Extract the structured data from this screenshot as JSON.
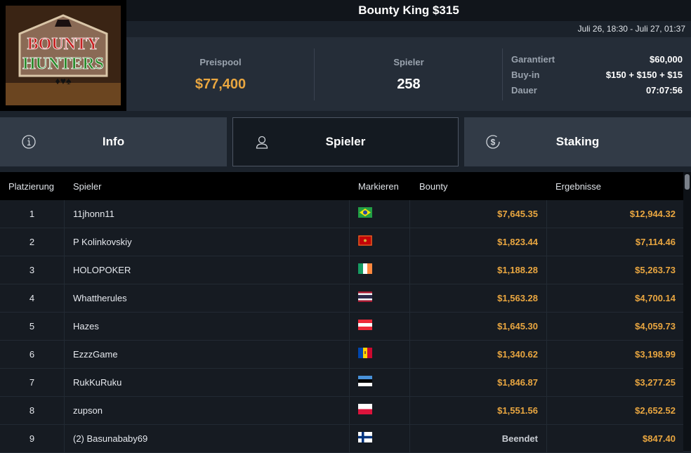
{
  "logo": {
    "text": "BOUNTY HUNTERS"
  },
  "header": {
    "title": "Bounty King $315",
    "dates": "Juli 26, 18:30 - Juli 27, 01:37"
  },
  "stats": {
    "prizepool_label": "Preispool",
    "prizepool": "$77,400",
    "players_label": "Spieler",
    "players": "258",
    "details": [
      {
        "k": "Garantiert",
        "v": "$60,000"
      },
      {
        "k": "Buy-in",
        "v": "$150 + $150 + $15"
      },
      {
        "k": "Dauer",
        "v": "07:07:56"
      }
    ]
  },
  "tabs": [
    {
      "label": "Info",
      "icon": "info-icon"
    },
    {
      "label": "Spieler",
      "icon": "user-icon",
      "active": true
    },
    {
      "label": "Staking",
      "icon": "dollar-coin-icon"
    }
  ],
  "table": {
    "headers": {
      "rank": "Platzierung",
      "player": "Spieler",
      "mark": "Markieren",
      "bounty": "Bounty",
      "results": "Ergebnisse"
    },
    "rows": [
      {
        "rank": "1",
        "player": "11jhonn11",
        "flag": "brazil",
        "bounty": "$7,645.35",
        "result": "$12,944.32"
      },
      {
        "rank": "2",
        "player": "P Kolinkovskiy",
        "flag": "montenegro",
        "bounty": "$1,823.44",
        "result": "$7,114.46"
      },
      {
        "rank": "3",
        "player": "HOLOPOKER",
        "flag": "ireland",
        "bounty": "$1,188.28",
        "result": "$5,263.73"
      },
      {
        "rank": "4",
        "player": "Whattherules",
        "flag": "thailand",
        "bounty": "$1,563.28",
        "result": "$4,700.14"
      },
      {
        "rank": "5",
        "player": "Hazes",
        "flag": "austria",
        "bounty": "$1,645.30",
        "result": "$4,059.73"
      },
      {
        "rank": "6",
        "player": "EzzzGame",
        "flag": "moldova",
        "bounty": "$1,340.62",
        "result": "$3,198.99"
      },
      {
        "rank": "7",
        "player": "RukKuRuku",
        "flag": "estonia",
        "bounty": "$1,846.87",
        "result": "$3,277.25"
      },
      {
        "rank": "8",
        "player": "zupson",
        "flag": "poland",
        "bounty": "$1,551.56",
        "result": "$2,652.52"
      },
      {
        "rank": "9",
        "player": "(2) Basunababy69",
        "flag": "finland",
        "bounty": "Beendet",
        "result": "$847.40"
      }
    ]
  },
  "colors": {
    "accent": "#e9a640",
    "bg": "#161b22"
  }
}
